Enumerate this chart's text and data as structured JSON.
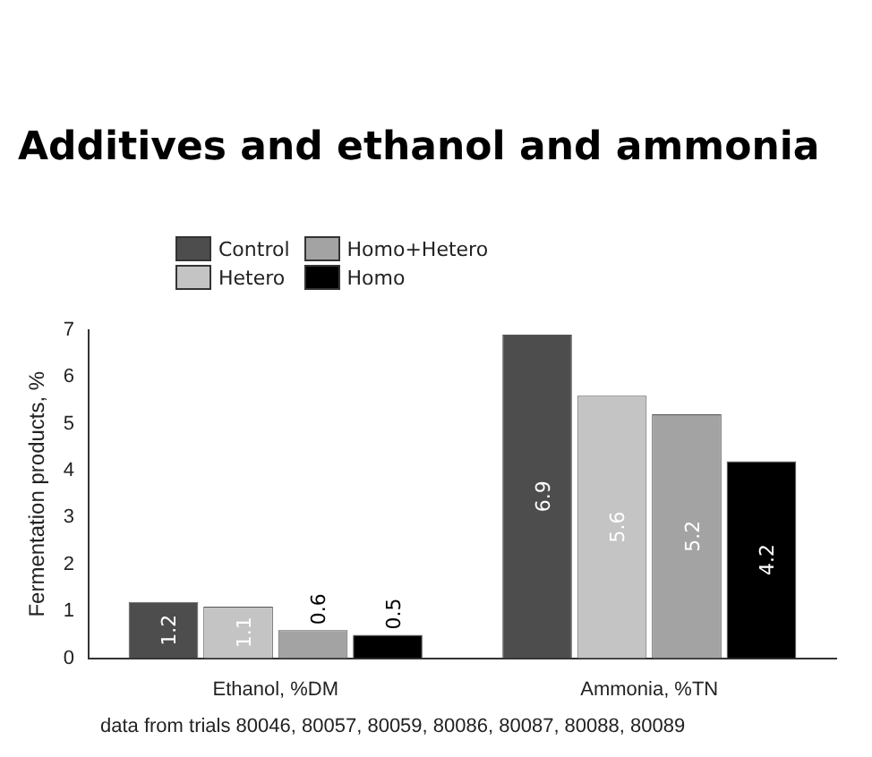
{
  "chart_data": {
    "type": "bar",
    "title": "Additives and ethanol and ammonia",
    "ylabel": "Fermentation products, %",
    "categories": [
      "Ethanol, %DM",
      "Ammonia, %TN"
    ],
    "series": [
      {
        "name": "Control",
        "color": "#4d4d4d",
        "values": [
          1.2,
          6.9
        ]
      },
      {
        "name": "Hetero",
        "color": "#c4c4c4",
        "values": [
          1.1,
          5.6
        ]
      },
      {
        "name": "Homo+Hetero",
        "color": "#a3a3a3",
        "values": [
          0.6,
          5.2
        ]
      },
      {
        "name": "Homo",
        "color": "#000000",
        "values": [
          0.5,
          4.2
        ]
      }
    ],
    "ylim": [
      0,
      7
    ],
    "yticks": [
      0,
      1,
      2,
      3,
      4,
      5,
      6,
      7
    ],
    "grid": false,
    "legend": "top left",
    "data_labels": true,
    "annotations": [
      "data from trials 80046, 80057, 80059, 80086, 80087, 80088, 80089"
    ]
  }
}
